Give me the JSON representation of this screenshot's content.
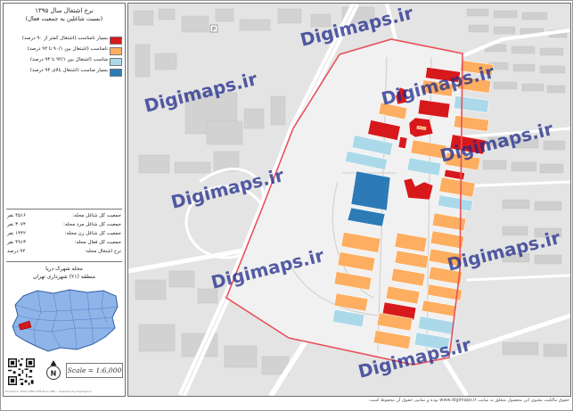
{
  "legend": {
    "title": "نرخ اشتغال سال ۱۳۹۵",
    "subtitle": "(نسبت شاغلین به جمعیت فعال)",
    "items": [
      {
        "label": "بسیار نامناسب (اشتغال کمتر از ۹۰ درصد)",
        "color": "#d7191c"
      },
      {
        "label": "نامناسب (اشتغال بین ۹۰/۱ تا ۹۲ درصد)",
        "color": "#fdae61"
      },
      {
        "label": "مناسب (اشتغال بین ۹۲/۱ تا ۹۴ درصد)",
        "color": "#abd9e9"
      },
      {
        "label": "بسیار مناسب (اشتغال بالای ۹۴ درصد)",
        "color": "#2c7bb6"
      }
    ],
    "stats": [
      {
        "label": "جمعیت کل شاغل محله:",
        "value": "۴۵۱۶ نفر"
      },
      {
        "label": "جمعیت کل شاغل مرد محله:",
        "value": "۳۰۷۴ نفر"
      },
      {
        "label": "جمعیت کل شاغل زن محله:",
        "value": "۱۴۴۲ نفر"
      },
      {
        "label": "جمعیت کل فعال محله:",
        "value": "۴۹۱۳ نفر"
      },
      {
        "label": "نرخ اشتغال محله:",
        "value": "۹۲ درصد"
      }
    ],
    "location_line1": "محله شهرک دریا",
    "location_line2": "منطقه (۲۱) شهرداری تهران",
    "scale_text": "Scale = 1:6,000",
    "credit_text": "Projection: WGS 1984 UTM Zone 39N — Prepared by Digimaps.ir"
  },
  "watermark": "Digimaps.ir",
  "footer_text": "حقوق مالکیت معنوی این محصول متعلق به سایت www.digimaps.ir بوده و تمامی حقوق آن محفوظ است.",
  "colors": {
    "very_poor": "#d7191c",
    "poor": "#fdae61",
    "good": "#abd9e9",
    "very_good": "#2c7bb6",
    "boundary": "#e8525a"
  },
  "blocks": [
    {
      "cls": "very_poor"
    },
    {
      "cls": "poor"
    },
    {
      "cls": "poor"
    },
    {
      "cls": "very_poor"
    },
    {
      "cls": "poor"
    },
    {
      "cls": "good"
    },
    {
      "cls": "poor"
    },
    {
      "cls": "very_poor"
    },
    {
      "cls": "poor"
    },
    {
      "cls": "very_poor"
    },
    {
      "cls": "very_poor"
    },
    {
      "cls": "poor"
    },
    {
      "cls": "very_poor"
    },
    {
      "cls": "very_poor"
    },
    {
      "cls": "good"
    },
    {
      "cls": "poor"
    },
    {
      "cls": "good"
    },
    {
      "cls": "good"
    },
    {
      "cls": "very_poor"
    },
    {
      "cls": "poor"
    },
    {
      "cls": "very_good"
    },
    {
      "cls": "very_poor"
    },
    {
      "cls": "poor"
    },
    {
      "cls": "good"
    },
    {
      "cls": "very_good"
    },
    {
      "cls": "poor"
    },
    {
      "cls": "poor"
    },
    {
      "cls": "poor"
    },
    {
      "cls": "poor"
    },
    {
      "cls": "poor"
    },
    {
      "cls": "poor"
    },
    {
      "cls": "poor"
    },
    {
      "cls": "poor"
    },
    {
      "cls": "poor"
    },
    {
      "cls": "poor"
    },
    {
      "cls": "poor"
    },
    {
      "cls": "poor"
    },
    {
      "cls": "very_poor"
    },
    {
      "cls": "poor"
    },
    {
      "cls": "poor"
    },
    {
      "cls": "poor"
    },
    {
      "cls": "good"
    },
    {
      "cls": "good"
    },
    {
      "cls": "poor"
    },
    {
      "cls": "good"
    },
    {
      "cls": "good"
    }
  ]
}
